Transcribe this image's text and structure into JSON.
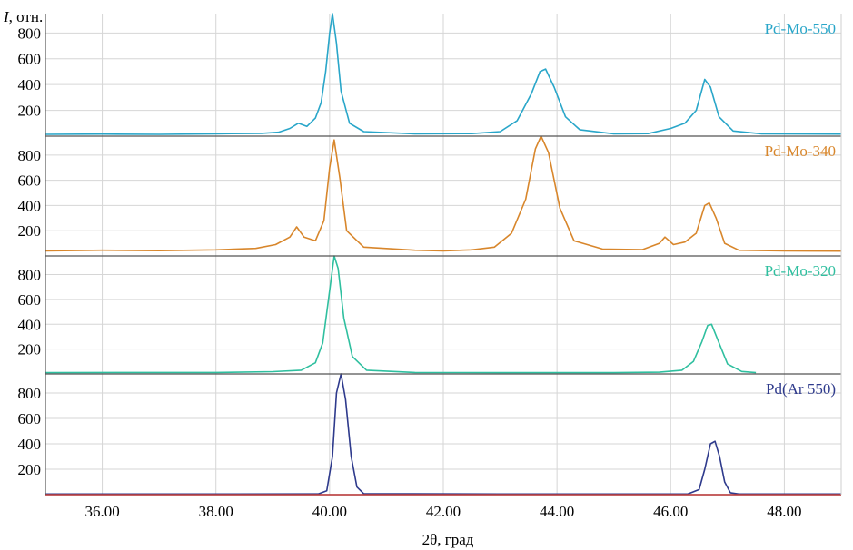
{
  "chart_data": {
    "type": "line",
    "title": "",
    "xlabel": "2θ, град",
    "ylabel": "I, отн.",
    "xlim": [
      35.0,
      49.0
    ],
    "x_ticks": [
      "36.00",
      "38.00",
      "40.00",
      "42.00",
      "44.00",
      "46.00",
      "48.00"
    ],
    "y_ticks": [
      "200",
      "400",
      "600",
      "800"
    ],
    "ylim": [
      0,
      950
    ],
    "grid": true,
    "panels": [
      {
        "name": "Pd-Mo-550",
        "color": "#29a6c9",
        "baseline": 15,
        "points": [
          [
            35.0,
            14
          ],
          [
            36.0,
            16
          ],
          [
            37.0,
            14
          ],
          [
            38.0,
            18
          ],
          [
            38.8,
            22
          ],
          [
            39.1,
            30
          ],
          [
            39.3,
            60
          ],
          [
            39.45,
            100
          ],
          [
            39.6,
            75
          ],
          [
            39.75,
            140
          ],
          [
            39.85,
            260
          ],
          [
            39.93,
            500
          ],
          [
            40.0,
            800
          ],
          [
            40.05,
            950
          ],
          [
            40.12,
            720
          ],
          [
            40.2,
            350
          ],
          [
            40.35,
            100
          ],
          [
            40.6,
            35
          ],
          [
            41.5,
            18
          ],
          [
            42.5,
            20
          ],
          [
            43.0,
            35
          ],
          [
            43.3,
            120
          ],
          [
            43.55,
            330
          ],
          [
            43.7,
            500
          ],
          [
            43.8,
            520
          ],
          [
            43.95,
            380
          ],
          [
            44.15,
            150
          ],
          [
            44.4,
            50
          ],
          [
            45.0,
            18
          ],
          [
            45.6,
            20
          ],
          [
            46.0,
            60
          ],
          [
            46.25,
            100
          ],
          [
            46.45,
            200
          ],
          [
            46.6,
            440
          ],
          [
            46.7,
            380
          ],
          [
            46.85,
            150
          ],
          [
            47.1,
            40
          ],
          [
            47.6,
            18
          ],
          [
            49.0,
            16
          ]
        ]
      },
      {
        "name": "Pd-Mo-340",
        "color": "#d8862b",
        "baseline": 40,
        "points": [
          [
            35.0,
            40
          ],
          [
            36.0,
            45
          ],
          [
            37.0,
            42
          ],
          [
            38.0,
            48
          ],
          [
            38.7,
            60
          ],
          [
            39.05,
            90
          ],
          [
            39.3,
            150
          ],
          [
            39.42,
            230
          ],
          [
            39.55,
            150
          ],
          [
            39.75,
            120
          ],
          [
            39.9,
            280
          ],
          [
            40.0,
            700
          ],
          [
            40.08,
            920
          ],
          [
            40.18,
            620
          ],
          [
            40.3,
            200
          ],
          [
            40.6,
            70
          ],
          [
            41.5,
            45
          ],
          [
            42.0,
            40
          ],
          [
            42.5,
            48
          ],
          [
            42.9,
            70
          ],
          [
            43.2,
            180
          ],
          [
            43.45,
            450
          ],
          [
            43.62,
            850
          ],
          [
            43.72,
            950
          ],
          [
            43.85,
            820
          ],
          [
            44.05,
            380
          ],
          [
            44.3,
            120
          ],
          [
            44.8,
            55
          ],
          [
            45.5,
            50
          ],
          [
            45.8,
            100
          ],
          [
            45.9,
            150
          ],
          [
            46.05,
            90
          ],
          [
            46.25,
            110
          ],
          [
            46.45,
            180
          ],
          [
            46.6,
            400
          ],
          [
            46.68,
            420
          ],
          [
            46.8,
            300
          ],
          [
            46.95,
            100
          ],
          [
            47.2,
            45
          ],
          [
            48.0,
            40
          ],
          [
            49.0,
            38
          ]
        ]
      },
      {
        "name": "Pd-Mo-320",
        "color": "#2fbf9f",
        "baseline": 10,
        "points": [
          [
            35.0,
            10
          ],
          [
            36.5,
            12
          ],
          [
            38.0,
            12
          ],
          [
            39.0,
            18
          ],
          [
            39.5,
            30
          ],
          [
            39.75,
            90
          ],
          [
            39.88,
            250
          ],
          [
            39.98,
            600
          ],
          [
            40.08,
            950
          ],
          [
            40.15,
            850
          ],
          [
            40.25,
            450
          ],
          [
            40.4,
            140
          ],
          [
            40.65,
            30
          ],
          [
            41.5,
            12
          ],
          [
            43.0,
            10
          ],
          [
            45.0,
            10
          ],
          [
            45.8,
            14
          ],
          [
            46.2,
            30
          ],
          [
            46.4,
            100
          ],
          [
            46.55,
            260
          ],
          [
            46.65,
            390
          ],
          [
            46.72,
            400
          ],
          [
            46.85,
            250
          ],
          [
            47.0,
            80
          ],
          [
            47.25,
            20
          ],
          [
            47.5,
            10
          ]
        ]
      },
      {
        "name": "Pd(Ar 550)",
        "color": "#2e3a8c",
        "baseline": 5,
        "points": [
          [
            35.0,
            5
          ],
          [
            38.0,
            5
          ],
          [
            39.8,
            6
          ],
          [
            39.95,
            30
          ],
          [
            40.05,
            300
          ],
          [
            40.12,
            800
          ],
          [
            40.2,
            950
          ],
          [
            40.28,
            750
          ],
          [
            40.38,
            300
          ],
          [
            40.48,
            60
          ],
          [
            40.6,
            8
          ],
          [
            43.0,
            5
          ],
          [
            46.3,
            5
          ],
          [
            46.5,
            40
          ],
          [
            46.6,
            200
          ],
          [
            46.7,
            400
          ],
          [
            46.78,
            420
          ],
          [
            46.86,
            300
          ],
          [
            46.95,
            100
          ],
          [
            47.05,
            15
          ],
          [
            47.2,
            5
          ],
          [
            49.0,
            5
          ]
        ]
      }
    ]
  }
}
